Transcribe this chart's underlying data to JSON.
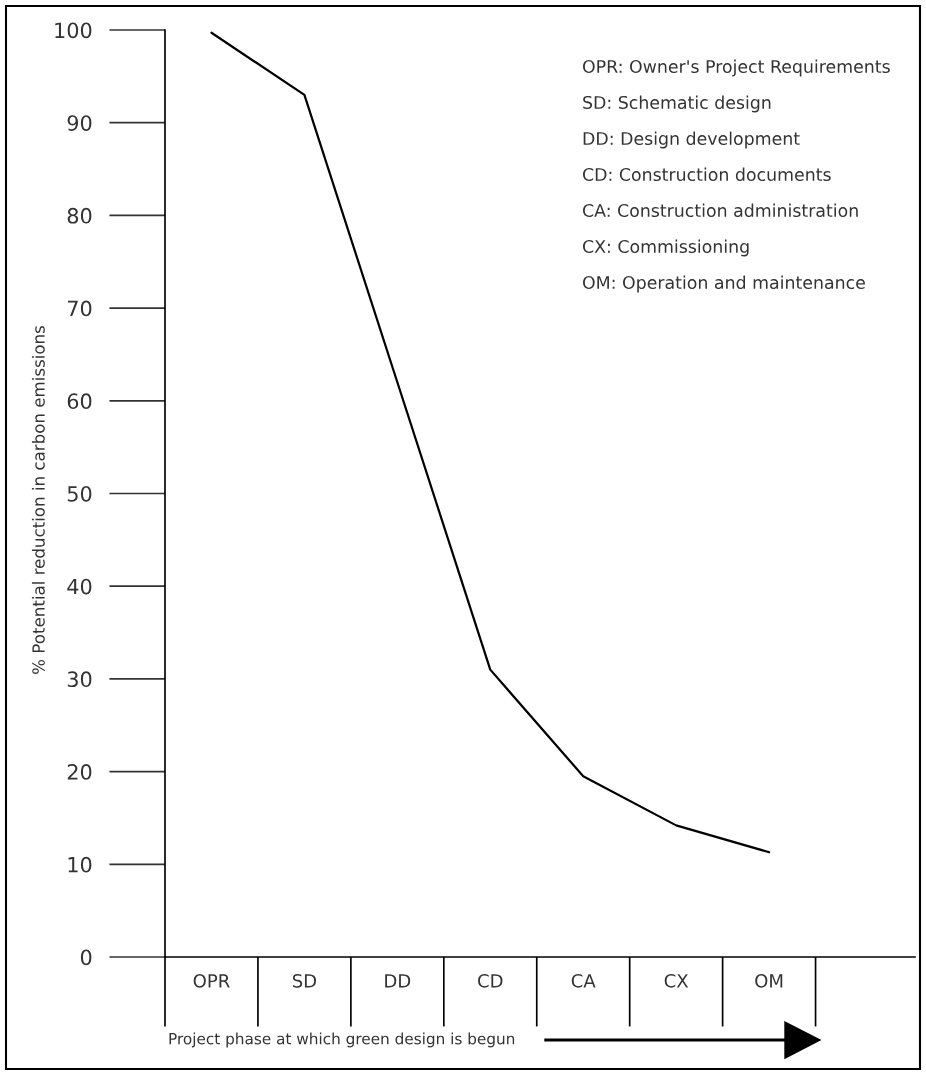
{
  "chart_data": {
    "type": "line",
    "ylabel": "% Potential reduction in carbon emissions",
    "xlabel": "Project phase at which green design is begun",
    "categories": [
      "OPR",
      "SD",
      "DD",
      "CD",
      "CA",
      "CX",
      "OM"
    ],
    "series": [
      {
        "color": "#000000",
        "values": [
          99.7,
          93,
          62,
          31,
          19.5,
          14.2,
          11.3
        ]
      }
    ],
    "ylim": [
      0,
      100
    ],
    "yticks": [
      0,
      10,
      20,
      30,
      40,
      50,
      60,
      70,
      80,
      90,
      100
    ],
    "grid": false,
    "marker": "none",
    "line_style": "solid",
    "annotations": [
      "OPR: Owner's Project Requirements",
      "SD: Schematic design",
      "DD: Design development",
      "CD: Construction documents",
      "CA: Construction administration",
      "CX: Commissioning",
      "OM: Operation and maintenance"
    ]
  }
}
